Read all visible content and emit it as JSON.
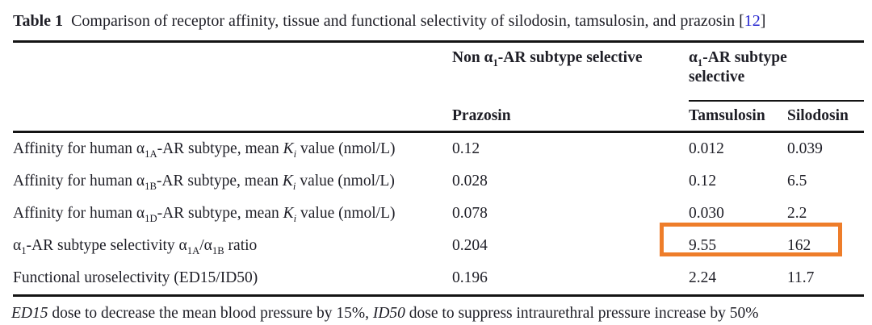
{
  "colors": {
    "text": "#1e1e26",
    "rule": "#141414",
    "citation_blue": "#2626d0",
    "highlight_orange": "#ee7d2a"
  },
  "caption": {
    "label": "Table 1",
    "text": "Comparison of receptor affinity, tissue and functional selectivity of silodosin, tamsulosin, and prazosin",
    "citation_open": "[",
    "citation_number": "12",
    "citation_close": "]"
  },
  "header": {
    "group_non_selective": [
      {
        "t": "Non α"
      },
      {
        "t": "1",
        "s": "sub"
      },
      {
        "t": "-AR subtype selective"
      }
    ],
    "group_selective": [
      {
        "t": "α"
      },
      {
        "t": "1",
        "s": "sub"
      },
      {
        "t": "-AR subtype selective"
      }
    ],
    "col_prazosin": "Prazosin",
    "col_tamsulosin": "Tamsulosin",
    "col_silodosin": "Silodosin"
  },
  "rows": [
    {
      "label": [
        {
          "t": "Affinity for human α"
        },
        {
          "t": "1A",
          "s": "sub"
        },
        {
          "t": "-AR subtype, mean "
        },
        {
          "t": "K",
          "s": "i"
        },
        {
          "t": "i",
          "s": "isub"
        },
        {
          "t": " value (nmol/L)"
        }
      ],
      "prazosin": "0.12",
      "tamsulosin": "0.012",
      "silodosin": "0.039"
    },
    {
      "label": [
        {
          "t": "Affinity for human α"
        },
        {
          "t": "1B",
          "s": "sub"
        },
        {
          "t": "-AR subtype, mean "
        },
        {
          "t": "K",
          "s": "i"
        },
        {
          "t": "i",
          "s": "isub"
        },
        {
          "t": " value (nmol/L)"
        }
      ],
      "prazosin": "0.028",
      "tamsulosin": "0.12",
      "silodosin": "6.5"
    },
    {
      "label": [
        {
          "t": "Affinity for human α"
        },
        {
          "t": "1D",
          "s": "sub"
        },
        {
          "t": "-AR subtype, mean "
        },
        {
          "t": "K",
          "s": "i"
        },
        {
          "t": "i",
          "s": "isub"
        },
        {
          "t": " value (nmol/L)"
        }
      ],
      "prazosin": "0.078",
      "tamsulosin": "0.030",
      "silodosin": "2.2"
    },
    {
      "label": [
        {
          "t": "α"
        },
        {
          "t": "1",
          "s": "sub"
        },
        {
          "t": "-AR subtype selectivity α"
        },
        {
          "t": "1A",
          "s": "sub"
        },
        {
          "t": "/α"
        },
        {
          "t": "1B",
          "s": "sub"
        },
        {
          "t": " ratio"
        }
      ],
      "prazosin": "0.204",
      "tamsulosin": "9.55",
      "silodosin": "162"
    },
    {
      "label": [
        {
          "t": "Functional uroselectivity (ED15/ID50)"
        }
      ],
      "prazosin": "0.196",
      "tamsulosin": "2.24",
      "silodosin": "11.7"
    }
  ],
  "highlight_box": {
    "color": "#ee7d2a",
    "marks": "tamsulosin and silodosin values in the α1-AR subtype selectivity ratio row",
    "values": [
      "9.55",
      "162"
    ]
  },
  "footnote": [
    {
      "t": "ED15",
      "s": "i"
    },
    {
      "t": " dose to decrease the mean blood pressure by 15%, "
    },
    {
      "t": "ID50",
      "s": "i"
    },
    {
      "t": "  dose to suppress intraurethral pressure increase by 50%"
    }
  ]
}
